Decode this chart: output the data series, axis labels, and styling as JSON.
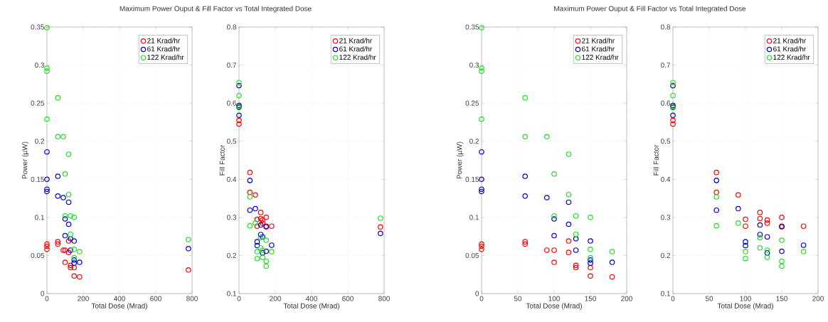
{
  "chart_data": [
    {
      "type": "scatter",
      "title": "Maximum Power Ouput & Fill Factor vs Total Integrated Dose",
      "xlabel": "Total Dose (Mrad)",
      "ylabel": "Power (µW)",
      "xlim": [
        0,
        800
      ],
      "ylim": [
        0,
        0.35
      ],
      "xticks": [
        0,
        200,
        400,
        600,
        800
      ],
      "yticks": [
        0,
        0.05,
        0.1,
        0.15,
        0.2,
        0.25,
        0.3,
        0.35
      ],
      "grid": true,
      "legend": "top right",
      "marker": "circle",
      "series": [
        {
          "name": "21 Krad/hr",
          "color": "#ff0000",
          "x": [
            0,
            0,
            0,
            60,
            60,
            90,
            100,
            100,
            120,
            120,
            130,
            130,
            150,
            150,
            180,
            780
          ],
          "values": [
            0.065,
            0.062,
            0.058,
            0.068,
            0.065,
            0.057,
            0.057,
            0.041,
            0.069,
            0.054,
            0.037,
            0.034,
            0.034,
            0.023,
            0.022,
            0.031
          ]
        },
        {
          "name": "61 Krad/hr",
          "color": "#0000cc",
          "x": [
            0,
            0,
            0,
            0,
            60,
            60,
            90,
            100,
            100,
            120,
            120,
            130,
            130,
            150,
            150,
            150,
            180,
            780
          ],
          "values": [
            0.186,
            0.15,
            0.137,
            0.134,
            0.154,
            0.128,
            0.126,
            0.098,
            0.076,
            0.12,
            0.091,
            0.072,
            0.057,
            0.069,
            0.044,
            0.04,
            0.041,
            0.059
          ]
        },
        {
          "name": "122 Krad/hr",
          "color": "#22dd22",
          "x": [
            0,
            0,
            0,
            0,
            60,
            60,
            90,
            100,
            100,
            120,
            120,
            130,
            130,
            150,
            150,
            150,
            180,
            780
          ],
          "values": [
            0.349,
            0.296,
            0.292,
            0.229,
            0.257,
            0.206,
            0.206,
            0.157,
            0.102,
            0.183,
            0.13,
            0.102,
            0.078,
            0.1,
            0.058,
            0.047,
            0.055,
            0.071
          ]
        }
      ]
    },
    {
      "type": "scatter",
      "xlabel": "Total Dose (Mrad)",
      "ylabel": "Fill Factor",
      "xlim": [
        0,
        800
      ],
      "ylim": [
        0.1,
        0.8
      ],
      "xticks": [
        0,
        200,
        400,
        600,
        800
      ],
      "yticks": [
        0.1,
        0.2,
        0.3,
        0.4,
        0.5,
        0.6,
        0.7,
        0.8
      ],
      "grid": true,
      "legend": "top right",
      "marker": "circle",
      "series": [
        {
          "name": "21 Krad/hr",
          "color": "#ff0000",
          "x": [
            0,
            0,
            60,
            60,
            90,
            100,
            100,
            120,
            120,
            130,
            130,
            150,
            150,
            180,
            780
          ],
          "values": [
            0.555,
            0.545,
            0.418,
            0.366,
            0.359,
            0.295,
            0.277,
            0.313,
            0.297,
            0.293,
            0.285,
            0.3,
            0.275,
            0.277,
            0.275
          ]
        },
        {
          "name": "61 Krad/hr",
          "color": "#0000cc",
          "x": [
            0,
            0,
            0,
            0,
            60,
            60,
            90,
            100,
            100,
            120,
            120,
            130,
            130,
            150,
            150,
            180,
            780
          ],
          "values": [
            0.646,
            0.594,
            0.59,
            0.568,
            0.397,
            0.319,
            0.323,
            0.236,
            0.226,
            0.28,
            0.255,
            0.249,
            0.207,
            0.277,
            0.211,
            0.227,
            0.258
          ]
        },
        {
          "name": "122 Krad/hr",
          "color": "#22dd22",
          "x": [
            0,
            0,
            0,
            60,
            60,
            90,
            100,
            100,
            120,
            120,
            130,
            130,
            150,
            150,
            150,
            180,
            780
          ],
          "values": [
            0.654,
            0.62,
            0.588,
            0.354,
            0.278,
            0.285,
            0.21,
            0.192,
            0.247,
            0.22,
            0.214,
            0.195,
            0.24,
            0.185,
            0.172,
            0.21,
            0.298
          ]
        }
      ]
    },
    {
      "type": "scatter",
      "title": "Maximum Power Ouput & Fill Factor vs Total Integrated Dose",
      "xlabel": "Total Dose (Mrad)",
      "ylabel": "Power (µW)",
      "xlim": [
        0,
        200
      ],
      "ylim": [
        0,
        0.35
      ],
      "xticks": [
        0,
        50,
        100,
        150,
        200
      ],
      "yticks": [
        0,
        0.05,
        0.1,
        0.15,
        0.2,
        0.25,
        0.3,
        0.35
      ],
      "grid": true,
      "legend": "top right",
      "marker": "circle",
      "series": [
        {
          "name": "21 Krad/hr",
          "color": "#ff0000",
          "x": [
            0,
            0,
            0,
            60,
            60,
            90,
            100,
            100,
            120,
            120,
            130,
            130,
            150,
            150,
            180
          ],
          "values": [
            0.065,
            0.062,
            0.058,
            0.068,
            0.065,
            0.057,
            0.057,
            0.041,
            0.069,
            0.054,
            0.037,
            0.034,
            0.034,
            0.023,
            0.022
          ]
        },
        {
          "name": "61 Krad/hr",
          "color": "#0000cc",
          "x": [
            0,
            0,
            0,
            0,
            60,
            60,
            90,
            100,
            100,
            120,
            120,
            130,
            130,
            150,
            150,
            150,
            180
          ],
          "values": [
            0.186,
            0.15,
            0.137,
            0.134,
            0.154,
            0.128,
            0.126,
            0.098,
            0.076,
            0.12,
            0.091,
            0.072,
            0.057,
            0.069,
            0.044,
            0.04,
            0.041
          ]
        },
        {
          "name": "122 Krad/hr",
          "color": "#22dd22",
          "x": [
            0,
            0,
            0,
            0,
            60,
            60,
            90,
            100,
            100,
            120,
            120,
            130,
            130,
            150,
            150,
            150,
            180
          ],
          "values": [
            0.349,
            0.296,
            0.292,
            0.229,
            0.257,
            0.206,
            0.206,
            0.157,
            0.102,
            0.183,
            0.13,
            0.102,
            0.078,
            0.1,
            0.058,
            0.047,
            0.055
          ]
        }
      ]
    },
    {
      "type": "scatter",
      "xlabel": "Total Dose (Mrad)",
      "ylabel": "Fill Factor",
      "xlim": [
        0,
        200
      ],
      "ylim": [
        0.1,
        0.8
      ],
      "xticks": [
        0,
        50,
        100,
        150,
        200
      ],
      "yticks": [
        0.1,
        0.2,
        0.3,
        0.4,
        0.5,
        0.6,
        0.7,
        0.8
      ],
      "grid": true,
      "legend": "top right",
      "marker": "circle",
      "series": [
        {
          "name": "21 Krad/hr",
          "color": "#ff0000",
          "x": [
            0,
            0,
            60,
            60,
            90,
            100,
            100,
            120,
            120,
            130,
            130,
            150,
            150,
            180
          ],
          "values": [
            0.555,
            0.545,
            0.418,
            0.366,
            0.359,
            0.295,
            0.277,
            0.313,
            0.297,
            0.293,
            0.285,
            0.3,
            0.275,
            0.277
          ]
        },
        {
          "name": "61 Krad/hr",
          "color": "#0000cc",
          "x": [
            0,
            0,
            0,
            0,
            60,
            60,
            90,
            100,
            100,
            120,
            120,
            130,
            130,
            150,
            150,
            180
          ],
          "values": [
            0.646,
            0.594,
            0.59,
            0.568,
            0.397,
            0.319,
            0.323,
            0.236,
            0.226,
            0.28,
            0.255,
            0.249,
            0.207,
            0.277,
            0.211,
            0.227
          ]
        },
        {
          "name": "122 Krad/hr",
          "color": "#22dd22",
          "x": [
            0,
            0,
            0,
            60,
            60,
            90,
            100,
            100,
            120,
            120,
            130,
            130,
            150,
            150,
            150,
            180
          ],
          "values": [
            0.654,
            0.62,
            0.588,
            0.354,
            0.278,
            0.285,
            0.21,
            0.192,
            0.247,
            0.22,
            0.214,
            0.195,
            0.24,
            0.185,
            0.172,
            0.21
          ]
        }
      ]
    }
  ]
}
